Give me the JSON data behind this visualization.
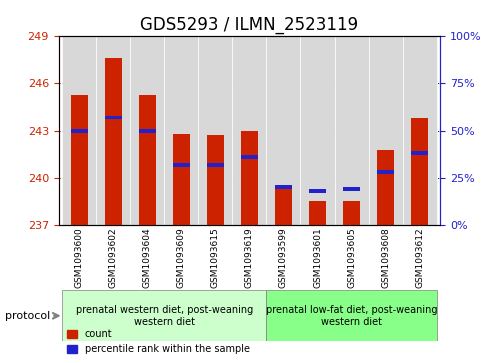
{
  "title": "GDS5293 / ILMN_2523119",
  "samples": [
    "GSM1093600",
    "GSM1093602",
    "GSM1093604",
    "GSM1093609",
    "GSM1093615",
    "GSM1093619",
    "GSM1093599",
    "GSM1093601",
    "GSM1093605",
    "GSM1093608",
    "GSM1093612"
  ],
  "bar_base": 237,
  "bar_heights": [
    8.3,
    10.6,
    8.3,
    5.8,
    5.7,
    6.0,
    2.5,
    1.5,
    1.5,
    4.8,
    6.8
  ],
  "percentile_values": [
    50,
    57,
    50,
    32,
    32,
    36,
    20,
    18,
    19,
    28,
    38
  ],
  "ylim": [
    237,
    249
  ],
  "yticks": [
    237,
    240,
    243,
    246,
    249
  ],
  "y2lim": [
    0,
    100
  ],
  "y2ticks": [
    0,
    25,
    50,
    75,
    100
  ],
  "bar_color": "#cc2200",
  "percentile_color": "#2222cc",
  "group1_label": "prenatal western diet, post-weaning\nwestern diet",
  "group2_label": "prenatal low-fat diet, post-weaning\nwestern diet",
  "group1_color": "#ccffcc",
  "group2_color": "#88ff88",
  "group1_samples": [
    "GSM1093600",
    "GSM1093602",
    "GSM1093604",
    "GSM1093609",
    "GSM1093615",
    "GSM1093619"
  ],
  "group2_samples": [
    "GSM1093599",
    "GSM1093601",
    "GSM1093605",
    "GSM1093608",
    "GSM1093612"
  ],
  "protocol_label": "protocol",
  "legend_count_label": "count",
  "legend_percentile_label": "percentile rank within the sample",
  "bar_width": 0.5,
  "title_fontsize": 12,
  "tick_fontsize": 8,
  "label_fontsize": 8
}
